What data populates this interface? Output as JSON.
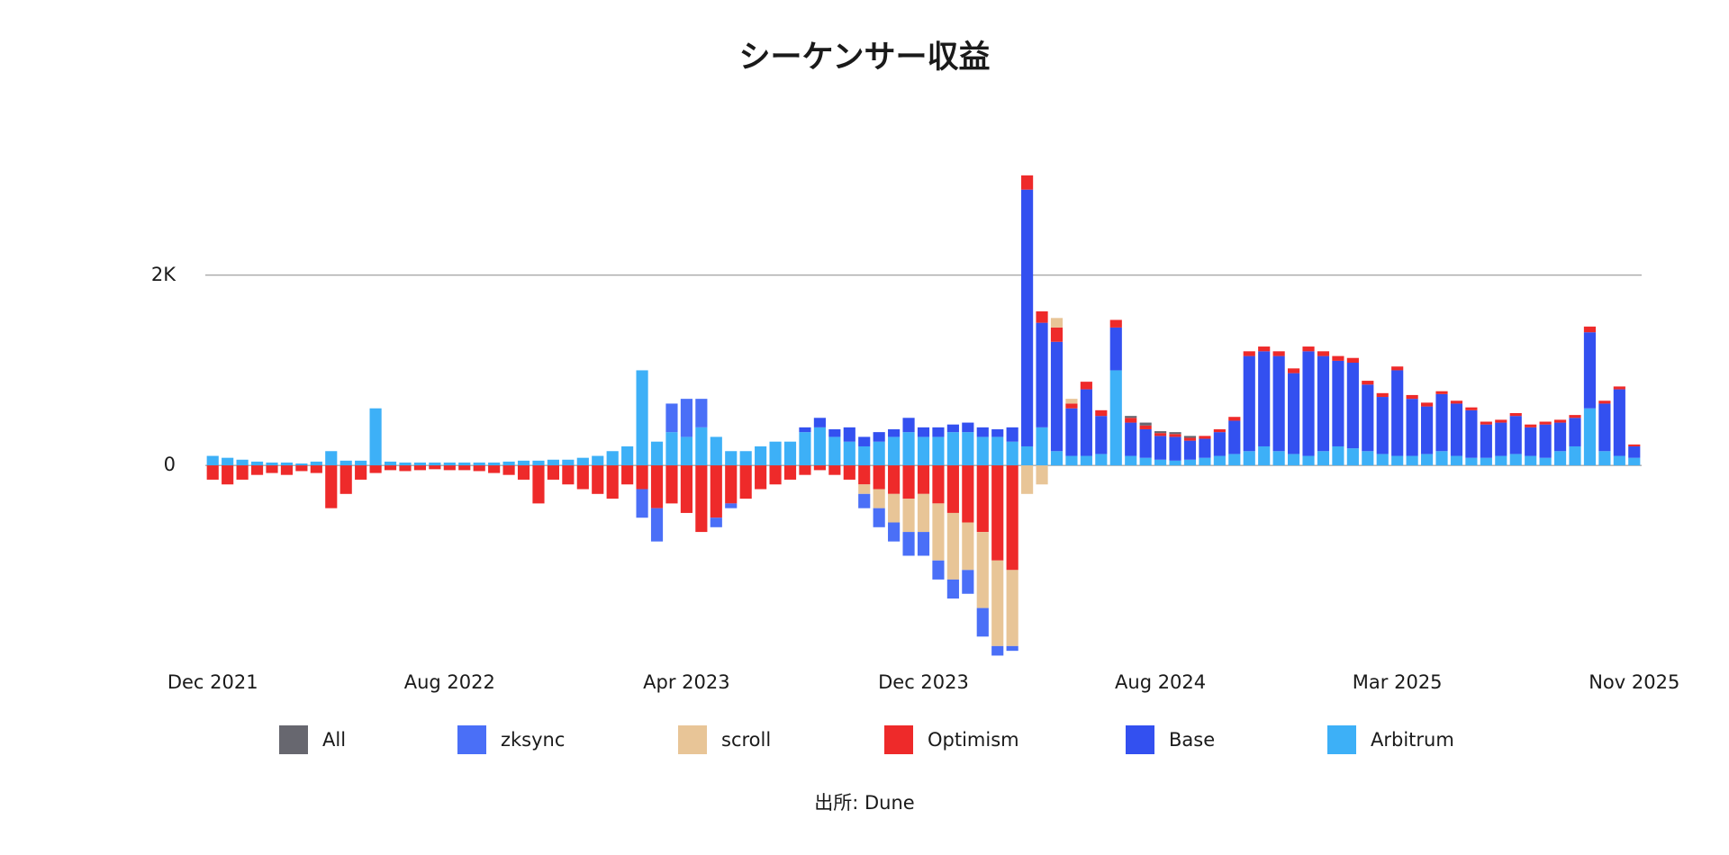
{
  "chart_data": {
    "type": "bar",
    "stacked": true,
    "title": "シーケンサー収益",
    "source": "出所: Dune",
    "categories": [
      "Dec 2021",
      null,
      null,
      null,
      null,
      null,
      null,
      null,
      null,
      null,
      null,
      null,
      null,
      null,
      null,
      null,
      "Aug 2022",
      null,
      null,
      null,
      null,
      null,
      null,
      null,
      null,
      null,
      null,
      null,
      null,
      null,
      null,
      null,
      "Apr 2023",
      null,
      null,
      null,
      null,
      null,
      null,
      null,
      null,
      null,
      null,
      null,
      null,
      null,
      null,
      null,
      "Dec 2023",
      null,
      null,
      null,
      null,
      null,
      null,
      null,
      null,
      null,
      null,
      null,
      null,
      null,
      null,
      null,
      "Aug 2024",
      null,
      null,
      null,
      null,
      null,
      null,
      null,
      null,
      null,
      null,
      null,
      null,
      null,
      null,
      null,
      "Mar 2025",
      null,
      null,
      null,
      null,
      null,
      null,
      null,
      null,
      null,
      null,
      null,
      null,
      null,
      null,
      null,
      "Nov 2025"
    ],
    "ylim": [
      -2100,
      3200
    ],
    "yticks": [
      0,
      {
        "value": 2000,
        "label": "2K"
      }
    ],
    "grid": true,
    "series": [
      {
        "name": "All",
        "color": "#67676f",
        "values": [
          0,
          0,
          0,
          0,
          0,
          0,
          0,
          0,
          0,
          0,
          0,
          0,
          0,
          0,
          0,
          0,
          0,
          0,
          0,
          0,
          0,
          0,
          0,
          0,
          0,
          0,
          0,
          0,
          0,
          0,
          0,
          0,
          0,
          0,
          0,
          0,
          0,
          0,
          0,
          0,
          0,
          0,
          0,
          0,
          0,
          0,
          0,
          0,
          0,
          0,
          0,
          0,
          0,
          0,
          0,
          0,
          0,
          0,
          0,
          0,
          0,
          0,
          20,
          30,
          20,
          20,
          20,
          0,
          0,
          0,
          0,
          0,
          0,
          0,
          0,
          0,
          0,
          0,
          0,
          0,
          0,
          0,
          0,
          0,
          0,
          0,
          0,
          0,
          0,
          0,
          0,
          0,
          0,
          0,
          0,
          0,
          0
        ]
      },
      {
        "name": "zksync",
        "color": "#4a6ff7",
        "values": [
          0,
          0,
          0,
          0,
          0,
          0,
          0,
          0,
          0,
          0,
          0,
          0,
          0,
          0,
          0,
          0,
          0,
          0,
          0,
          0,
          0,
          0,
          0,
          0,
          0,
          0,
          0,
          0,
          0,
          -300,
          -350,
          300,
          400,
          300,
          -100,
          -50,
          0,
          0,
          0,
          0,
          0,
          0,
          0,
          0,
          -150,
          -200,
          -200,
          -250,
          -250,
          -200,
          -200,
          -250,
          -300,
          -100,
          -50,
          0,
          0,
          0,
          0,
          0,
          0,
          0,
          0,
          0,
          0,
          0,
          0,
          0,
          0,
          0,
          0,
          0,
          0,
          0,
          0,
          0,
          0,
          0,
          0,
          0,
          0,
          0,
          0,
          0,
          0,
          0,
          0,
          0,
          0,
          0,
          0,
          0,
          0,
          0,
          0,
          0,
          0
        ]
      },
      {
        "name": "scroll",
        "color": "#e8c597",
        "values": [
          0,
          0,
          0,
          0,
          0,
          0,
          0,
          0,
          0,
          0,
          0,
          0,
          0,
          0,
          0,
          0,
          0,
          0,
          0,
          0,
          0,
          0,
          0,
          0,
          0,
          0,
          0,
          0,
          0,
          0,
          0,
          0,
          0,
          0,
          0,
          0,
          0,
          0,
          0,
          0,
          0,
          0,
          0,
          0,
          -100,
          -200,
          -300,
          -350,
          -400,
          -600,
          -700,
          -500,
          -800,
          -900,
          -800,
          -300,
          -200,
          100,
          50,
          0,
          0,
          0,
          0,
          0,
          0,
          0,
          0,
          0,
          0,
          0,
          0,
          0,
          0,
          0,
          0,
          0,
          0,
          0,
          0,
          0,
          0,
          0,
          0,
          0,
          0,
          0,
          0,
          0,
          0,
          0,
          0,
          0,
          0,
          0,
          0,
          0,
          0
        ]
      },
      {
        "name": "Optimism",
        "color": "#ee2a2a",
        "values": [
          -150,
          -200,
          -150,
          -100,
          -80,
          -100,
          -60,
          -80,
          -450,
          -300,
          -150,
          -80,
          -50,
          -60,
          -50,
          -40,
          -50,
          -50,
          -60,
          -80,
          -100,
          -150,
          -400,
          -150,
          -200,
          -250,
          -300,
          -350,
          -200,
          -250,
          -450,
          -400,
          -500,
          -700,
          -550,
          -400,
          -350,
          -250,
          -200,
          -150,
          -100,
          -50,
          -100,
          -150,
          -200,
          -250,
          -300,
          -350,
          -300,
          -400,
          -500,
          -600,
          -700,
          -1000,
          -1100,
          150,
          120,
          150,
          50,
          80,
          60,
          80,
          50,
          40,
          30,
          30,
          30,
          30,
          30,
          40,
          50,
          50,
          50,
          50,
          50,
          50,
          50,
          50,
          40,
          40,
          40,
          40,
          40,
          30,
          30,
          30,
          30,
          30,
          30,
          30,
          30,
          30,
          30,
          60,
          30,
          30,
          20
        ]
      },
      {
        "name": "Base",
        "color": "#3350f0",
        "values": [
          0,
          0,
          0,
          0,
          0,
          0,
          0,
          0,
          0,
          0,
          0,
          0,
          0,
          0,
          0,
          0,
          0,
          0,
          0,
          0,
          0,
          0,
          0,
          0,
          0,
          0,
          0,
          0,
          0,
          0,
          0,
          0,
          0,
          0,
          0,
          0,
          0,
          0,
          0,
          0,
          50,
          100,
          80,
          150,
          100,
          100,
          80,
          150,
          100,
          100,
          80,
          100,
          100,
          80,
          150,
          2700,
          1100,
          1150,
          500,
          700,
          400,
          450,
          350,
          300,
          250,
          250,
          200,
          200,
          250,
          350,
          1000,
          1000,
          1000,
          850,
          1100,
          1000,
          900,
          900,
          700,
          600,
          900,
          600,
          500,
          600,
          550,
          500,
          350,
          350,
          400,
          300,
          350,
          300,
          300,
          800,
          500,
          700,
          120
        ]
      },
      {
        "name": "Arbitrum",
        "color": "#3db0f7",
        "values": [
          100,
          80,
          60,
          40,
          30,
          30,
          20,
          40,
          150,
          50,
          50,
          600,
          40,
          30,
          30,
          30,
          30,
          30,
          30,
          30,
          40,
          50,
          50,
          60,
          60,
          80,
          100,
          150,
          200,
          1000,
          250,
          350,
          300,
          400,
          300,
          150,
          150,
          200,
          250,
          250,
          350,
          400,
          300,
          250,
          200,
          250,
          300,
          350,
          300,
          300,
          350,
          350,
          300,
          300,
          250,
          200,
          400,
          150,
          100,
          100,
          120,
          1000,
          100,
          80,
          60,
          50,
          60,
          80,
          100,
          120,
          150,
          200,
          150,
          120,
          100,
          150,
          200,
          180,
          150,
          120,
          100,
          100,
          120,
          150,
          100,
          80,
          80,
          100,
          120,
          100,
          80,
          150,
          200,
          600,
          150,
          100,
          80
        ]
      }
    ]
  }
}
